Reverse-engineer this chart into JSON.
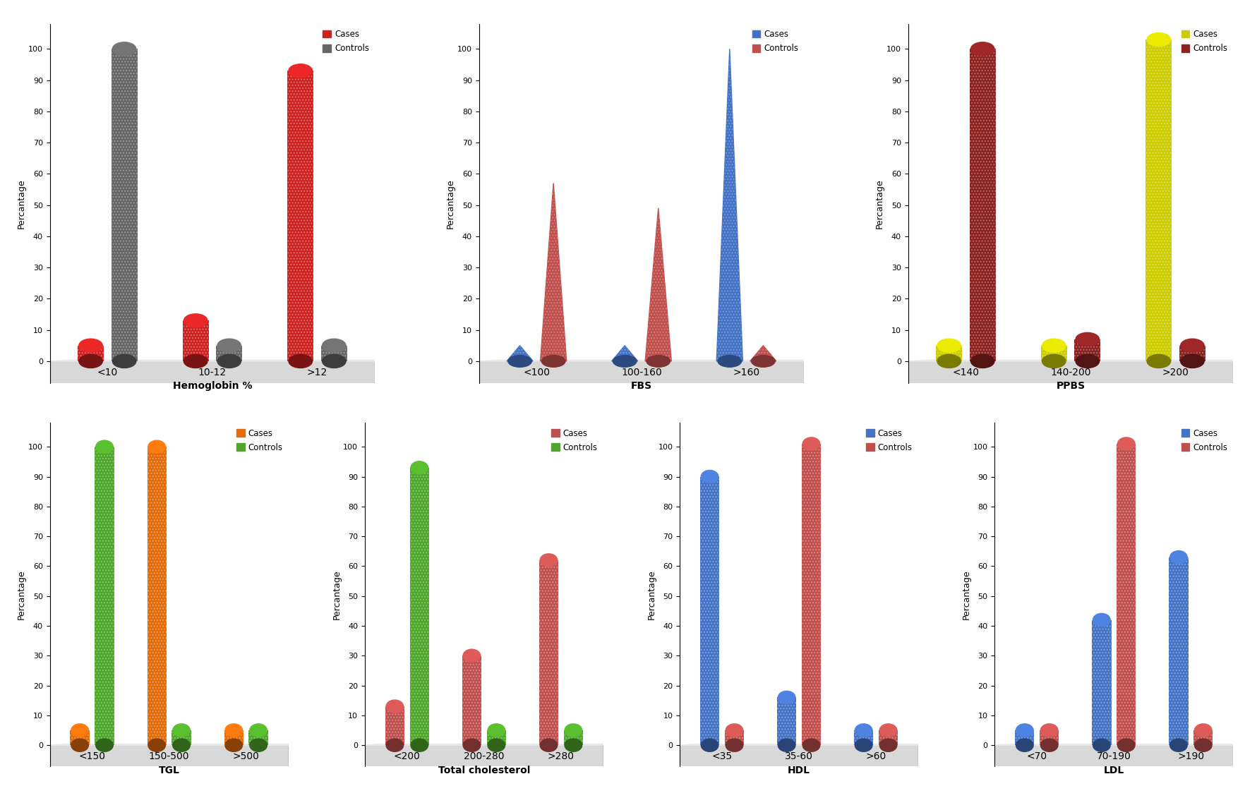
{
  "charts": [
    {
      "xlabel": "Hemoglobin %",
      "ylabel": "Percantage",
      "categories": [
        "<10",
        "10-12",
        ">12"
      ],
      "cases_values": [
        5,
        13,
        93
      ],
      "controls_values": [
        100,
        5,
        5
      ],
      "cases_color": "#CC2222",
      "controls_color": "#666666",
      "legend_cases": "Cases",
      "legend_controls": "Controls",
      "bar_style": "cylinder",
      "controls_first": true
    },
    {
      "xlabel": "FBS",
      "ylabel": "Percantage",
      "categories": [
        "<100",
        "100-160",
        ">160"
      ],
      "cases_values": [
        5,
        5,
        100
      ],
      "controls_values": [
        57,
        49,
        5
      ],
      "cases_color": "#4472C4",
      "controls_color": "#C0504D",
      "legend_cases": "Cases",
      "legend_controls": "Controls",
      "bar_style": "cone",
      "controls_first": false
    },
    {
      "xlabel": "PPBS",
      "ylabel": "Percantage",
      "categories": [
        "<140",
        "140-200",
        ">200"
      ],
      "cases_values": [
        5,
        5,
        103
      ],
      "controls_values": [
        100,
        7,
        5
      ],
      "cases_color": "#CCCC00",
      "controls_color": "#8B2222",
      "legend_cases": "Cases",
      "legend_controls": "Controls",
      "bar_style": "cylinder",
      "controls_first": false
    },
    {
      "xlabel": "TGL",
      "ylabel": "Percantage",
      "categories": [
        "<150",
        "150-500",
        ">500"
      ],
      "cases_values": [
        5,
        100,
        5
      ],
      "controls_values": [
        100,
        5,
        5
      ],
      "cases_color": "#E26B0A",
      "controls_color": "#4EA72A",
      "legend_cases": "Cases",
      "legend_controls": "Controls",
      "bar_style": "cylinder",
      "controls_first": false
    },
    {
      "xlabel": "Total cholesterol",
      "ylabel": "Percantage",
      "categories": [
        "<200",
        "200-280",
        ">280"
      ],
      "cases_values": [
        13,
        30,
        62
      ],
      "controls_values": [
        93,
        5,
        5
      ],
      "cases_color": "#C0504D",
      "controls_color": "#4EA72A",
      "legend_cases": "Cases",
      "legend_controls": "Controls",
      "bar_style": "cylinder",
      "controls_first": false
    },
    {
      "xlabel": "HDL",
      "ylabel": "Percantage",
      "categories": [
        "<35",
        "35-60",
        ">60"
      ],
      "cases_values": [
        90,
        16,
        5
      ],
      "controls_values": [
        5,
        101,
        5
      ],
      "cases_color": "#4472C4",
      "controls_color": "#C0504D",
      "legend_cases": "Cases",
      "legend_controls": "Controls",
      "bar_style": "cylinder",
      "controls_first": false
    },
    {
      "xlabel": "LDL",
      "ylabel": "Percantage",
      "categories": [
        "<70",
        "70-190",
        ">190"
      ],
      "cases_values": [
        5,
        42,
        63
      ],
      "controls_values": [
        5,
        101,
        5
      ],
      "cases_color": "#4472C4",
      "controls_color": "#C0504D",
      "legend_cases": "Cases",
      "legend_controls": "Controls",
      "bar_style": "cylinder",
      "controls_first": false
    }
  ]
}
